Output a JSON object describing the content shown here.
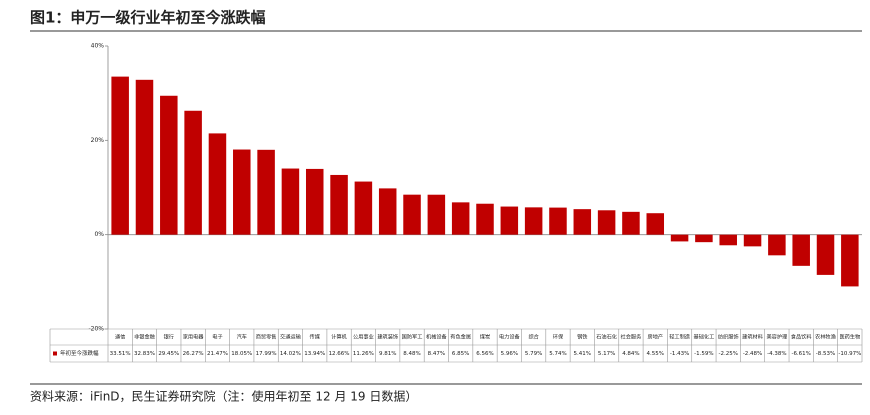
{
  "chart_data": {
    "type": "bar",
    "title": "图1：申万一级行业年初至今涨跌幅",
    "source": "资料来源：iFinD，民生证券研究院（注：使用年初至 12 月 19 日数据）",
    "categories": [
      "通信",
      "非银金融",
      "银行",
      "家用电器",
      "电子",
      "汽车",
      "商贸零售",
      "交通运输",
      "传媒",
      "计算机",
      "公用事业",
      "建筑装饰",
      "国防军工",
      "机械设备",
      "有色金属",
      "煤炭",
      "电力设备",
      "综合",
      "环保",
      "钢铁",
      "石油石化",
      "社会服务",
      "房地产",
      "轻工制造",
      "基础化工",
      "纺织服饰",
      "建筑材料",
      "美容护理",
      "食品饮料",
      "农林牧渔",
      "医药生物"
    ],
    "series": [
      {
        "name": "年初至今涨跌幅",
        "color": "#c00000",
        "values": [
          33.51,
          32.83,
          29.45,
          26.27,
          21.47,
          18.05,
          17.99,
          14.02,
          13.94,
          12.66,
          11.26,
          9.81,
          8.48,
          8.47,
          6.85,
          6.56,
          5.96,
          5.79,
          5.74,
          5.41,
          5.17,
          4.84,
          4.55,
          -1.43,
          -1.59,
          -2.25,
          -2.48,
          -4.38,
          -6.61,
          -8.53,
          -10.97
        ],
        "value_labels": [
          "33.51%",
          "32.83%",
          "29.45%",
          "26.27%",
          "21.47%",
          "18.05%",
          "17.99%",
          "14.02%",
          "13.94%",
          "12.66%",
          "11.26%",
          "9.81%",
          "8.48%",
          "8.47%",
          "6.85%",
          "6.56%",
          "5.96%",
          "5.79%",
          "5.74%",
          "5.41%",
          "5.17%",
          "4.84%",
          "4.55%",
          "-1.43%",
          "-1.59%",
          "-2.25%",
          "-2.48%",
          "-4.38%",
          "-6.61%",
          "-8.53%",
          "-10.97%"
        ]
      }
    ],
    "ylim": [
      -20,
      40
    ],
    "yticks": [
      {
        "value": -20,
        "label": "-20%"
      },
      {
        "value": 0,
        "label": "0%"
      },
      {
        "value": 20,
        "label": "20%"
      },
      {
        "value": 40,
        "label": "40%"
      }
    ],
    "grid": false
  }
}
